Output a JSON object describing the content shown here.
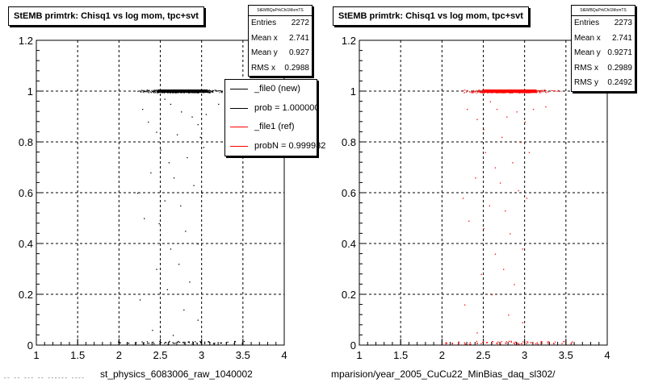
{
  "chart_data": [
    {
      "type": "scatter",
      "title": "StEMB primtrk: Chisq1 vs log mom, tpc+svt",
      "stats": {
        "header": "StEMBQaPrkChi1MomTS",
        "rows": [
          {
            "label": "Entries",
            "value": "2272"
          },
          {
            "label": "Mean x",
            "value": "2.741"
          },
          {
            "label": "Mean y",
            "value": "0.927"
          },
          {
            "label": "RMS x",
            "value": "0.2988"
          }
        ]
      },
      "legend": [
        {
          "label": "_file0 (new)",
          "color": "#000000"
        },
        {
          "label": "prob = 1.000000",
          "color": "#000000"
        },
        {
          "label": "_file1 (ref)",
          "color": "#ff0000"
        },
        {
          "label": "probN = 0.999932",
          "color": "#ff0000"
        }
      ],
      "xlabel": "st_physics_6083006_raw_1040002",
      "ylabel": "",
      "xlim": [
        1,
        4
      ],
      "ylim": [
        0,
        1.2
      ],
      "xticks": [
        "1",
        "1.5",
        "2",
        "2.5",
        "3",
        "3.5",
        "4"
      ],
      "yticks": [
        "0",
        "0.2",
        "0.4",
        "0.6",
        "0.8",
        "1",
        "1.2"
      ],
      "grid": true,
      "point_color": "#000000",
      "band_y": 1.0,
      "band_x": [
        2.1,
        3.45
      ],
      "scatter_points": [
        [
          2.28,
          0.93
        ],
        [
          2.35,
          0.88
        ],
        [
          2.55,
          0.97
        ],
        [
          2.62,
          0.95
        ],
        [
          2.75,
          0.92
        ],
        [
          2.88,
          0.9
        ],
        [
          2.95,
          0.87
        ],
        [
          3.05,
          0.91
        ],
        [
          2.45,
          0.84
        ],
        [
          2.7,
          0.83
        ],
        [
          2.98,
          0.82
        ],
        [
          3.2,
          0.95
        ],
        [
          2.5,
          0.77
        ],
        [
          2.6,
          0.72
        ],
        [
          2.82,
          0.74
        ],
        [
          3.02,
          0.78
        ],
        [
          2.38,
          0.68
        ],
        [
          2.66,
          0.66
        ],
        [
          2.9,
          0.63
        ],
        [
          2.22,
          0.6
        ],
        [
          2.55,
          0.57
        ],
        [
          2.74,
          0.55
        ],
        [
          3.0,
          0.6
        ],
        [
          2.48,
          0.48
        ],
        [
          2.8,
          0.45
        ],
        [
          2.3,
          0.5
        ],
        [
          2.95,
          0.4
        ],
        [
          2.62,
          0.38
        ],
        [
          2.72,
          0.32
        ],
        [
          2.45,
          0.3
        ],
        [
          2.85,
          0.25
        ],
        [
          2.58,
          0.22
        ],
        [
          2.25,
          0.18
        ],
        [
          2.78,
          0.14
        ],
        [
          2.95,
          0.1
        ],
        [
          2.4,
          0.06
        ],
        [
          2.65,
          0.04
        ]
      ],
      "bottom_x": [
        2.0,
        2.1,
        2.2,
        2.28,
        2.35,
        2.42,
        2.5,
        2.55,
        2.6,
        2.66,
        2.72,
        2.78,
        2.83,
        2.88,
        2.93,
        2.98,
        3.03,
        3.08,
        3.15,
        3.22,
        3.3,
        3.4,
        3.5
      ]
    },
    {
      "type": "scatter",
      "title": "StEMB primtrk: Chisq1 vs log mom, tpc+svt",
      "stats": {
        "header": "StEMBQaPrkChi1MomTS",
        "rows": [
          {
            "label": "Entries",
            "value": "2273"
          },
          {
            "label": "Mean x",
            "value": "2.741"
          },
          {
            "label": "Mean y",
            "value": "0.9271"
          },
          {
            "label": "RMS x",
            "value": "0.2989"
          },
          {
            "label": "RMS y",
            "value": "0.2492"
          }
        ]
      },
      "xlabel": "mparision/year_2005_CuCu22_MinBias_daq_sl302/",
      "ylabel": "",
      "xlim": [
        1,
        4
      ],
      "ylim": [
        0,
        1.2
      ],
      "xticks": [
        "1",
        "1.5",
        "2",
        "2.5",
        "3",
        "3.5",
        "4"
      ],
      "yticks": [
        "0",
        "0.2",
        "0.4",
        "0.6",
        "0.8",
        "1",
        "1.2"
      ],
      "grid": true,
      "point_color": "#ff0000",
      "band_y": 1.0,
      "band_x": [
        2.1,
        3.55
      ],
      "scatter_points": [
        [
          2.3,
          0.93
        ],
        [
          2.42,
          0.89
        ],
        [
          2.58,
          0.96
        ],
        [
          2.66,
          0.93
        ],
        [
          2.78,
          0.9
        ],
        [
          2.9,
          0.92
        ],
        [
          3.0,
          0.88
        ],
        [
          3.1,
          0.93
        ],
        [
          2.5,
          0.85
        ],
        [
          2.72,
          0.82
        ],
        [
          2.95,
          0.8
        ],
        [
          3.25,
          0.94
        ],
        [
          2.52,
          0.76
        ],
        [
          2.64,
          0.7
        ],
        [
          2.85,
          0.72
        ],
        [
          3.05,
          0.76
        ],
        [
          2.4,
          0.66
        ],
        [
          2.7,
          0.64
        ],
        [
          2.92,
          0.61
        ],
        [
          2.25,
          0.58
        ],
        [
          2.57,
          0.55
        ],
        [
          2.76,
          0.53
        ],
        [
          3.02,
          0.58
        ],
        [
          2.5,
          0.46
        ],
        [
          2.82,
          0.44
        ],
        [
          2.32,
          0.49
        ],
        [
          2.97,
          0.38
        ],
        [
          2.64,
          0.36
        ],
        [
          2.74,
          0.3
        ],
        [
          2.47,
          0.28
        ],
        [
          2.87,
          0.24
        ],
        [
          2.6,
          0.2
        ],
        [
          2.27,
          0.16
        ],
        [
          2.8,
          0.12
        ],
        [
          2.97,
          0.09
        ],
        [
          2.42,
          0.05
        ]
      ],
      "bottom_x": [
        2.05,
        2.12,
        2.2,
        2.27,
        2.34,
        2.41,
        2.48,
        2.54,
        2.6,
        2.66,
        2.71,
        2.77,
        2.82,
        2.87,
        2.92,
        2.97,
        3.02,
        3.08,
        3.14,
        3.2,
        3.28,
        3.36,
        3.46,
        3.56
      ]
    }
  ],
  "footer_text": "-- -- --- -- ------ ----"
}
